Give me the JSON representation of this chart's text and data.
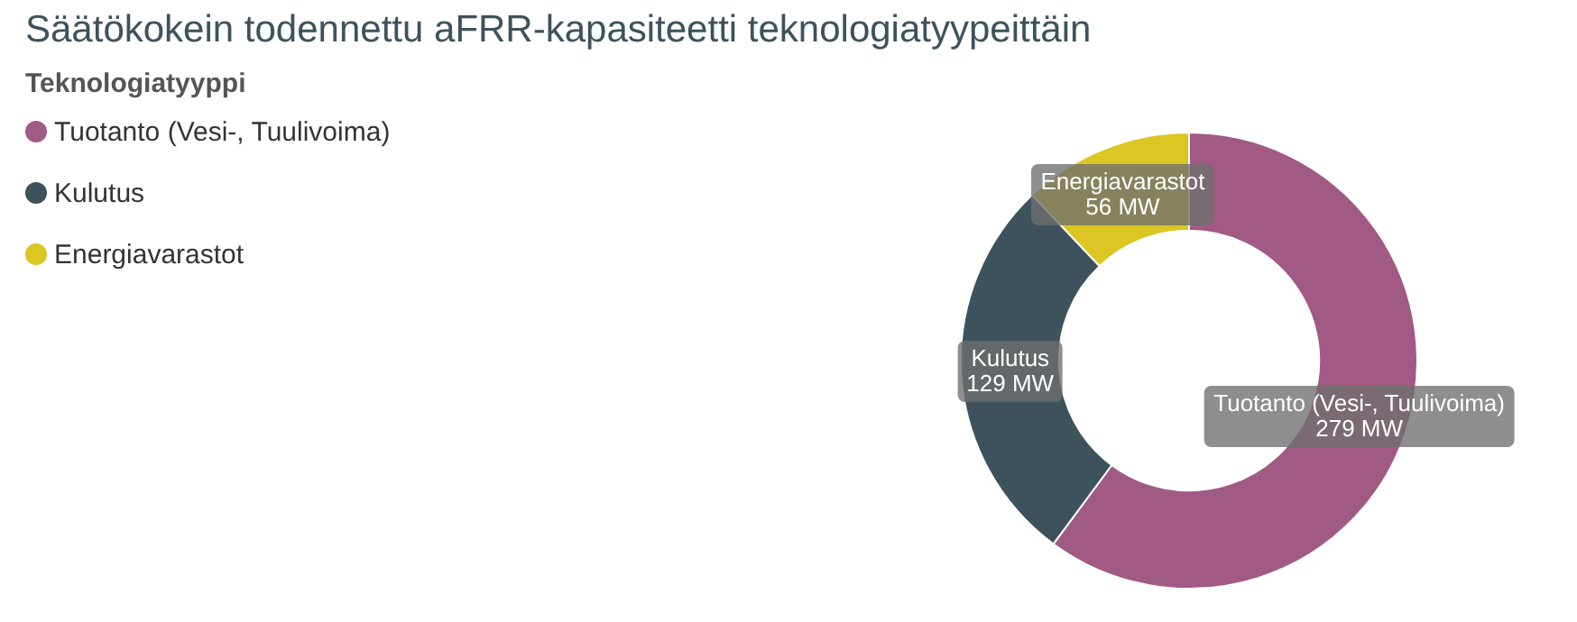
{
  "chart_data": {
    "type": "donut",
    "title": "Säätökokein todennettu aFRR-kapasiteetti teknologiatyypeittäin",
    "legend_title": "Teknologiatyyppi",
    "legend": "top left",
    "categories": [
      "Tuotanto (Vesi-, Tuulivoima)",
      "Kulutus",
      "Energiavarastot"
    ],
    "values": [
      279,
      129,
      56
    ],
    "colors": [
      "#a05a84",
      "#3d525c",
      "#dbc623"
    ],
    "value_labels": [
      "279 MW",
      "129 MW",
      "56 MW"
    ]
  }
}
